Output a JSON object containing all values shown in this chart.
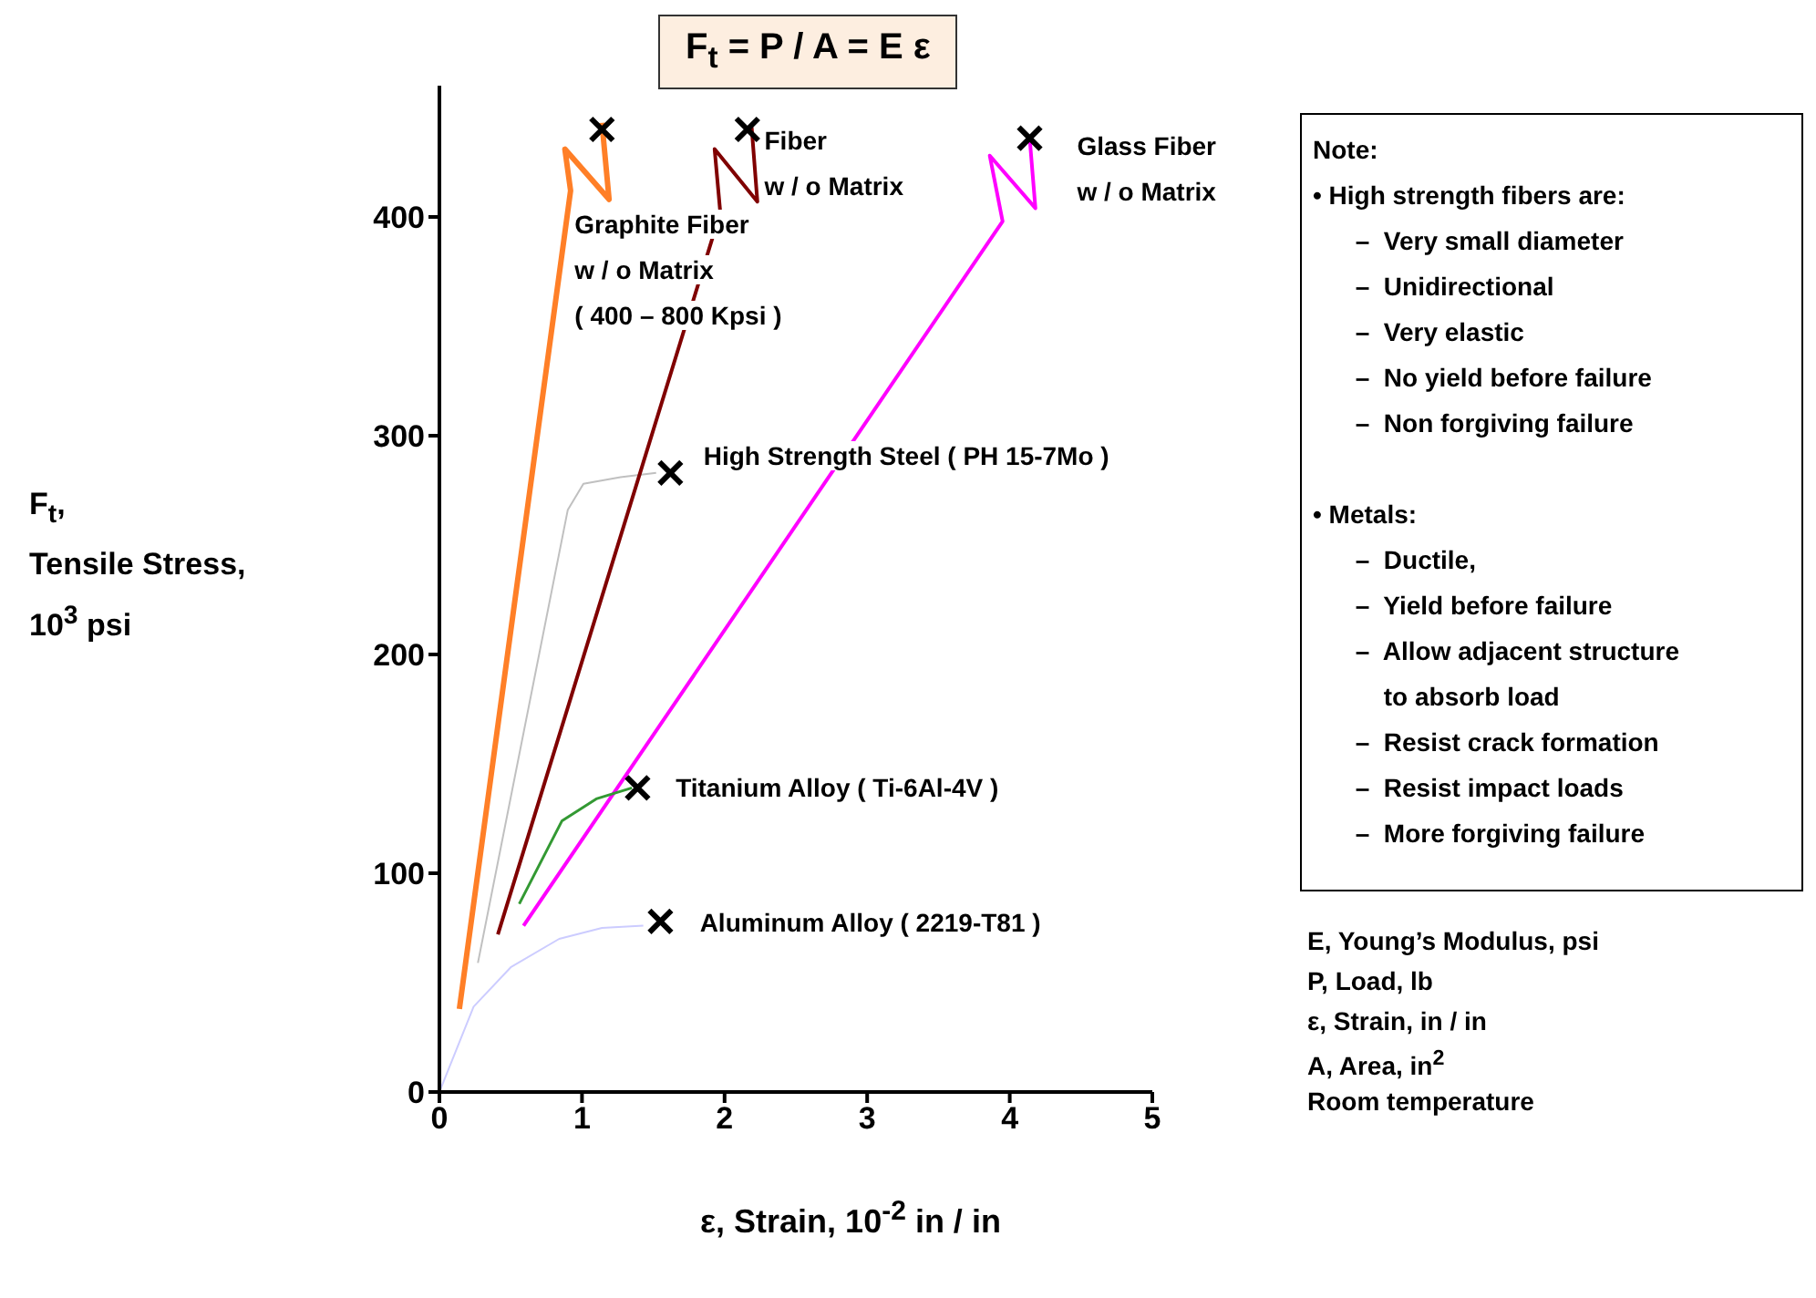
{
  "chart_data": {
    "type": "line",
    "title": "F$_{t}$ = P / A = E ε",
    "xlabel": "ε, Strain, 10$^{-2}$ in / in",
    "ylabel": "F$_{t}$,\nTensile Stress,\n10$^{3}$ psi",
    "xlim": [
      0,
      5
    ],
    "xticks": [
      0,
      1,
      2,
      3,
      4,
      5
    ],
    "ylim": [
      0,
      460
    ],
    "yticks": [
      0,
      100,
      200,
      300,
      400
    ],
    "grid": false,
    "marker": "none",
    "series": [
      {
        "name": "Graphite Fiber\nw / o Matrix\n( 400 – 800 Kpsi )",
        "color": "#ff7f27",
        "x": [
          0.14,
          0.92,
          0.88,
          1.19,
          1.14
        ],
        "values": [
          38,
          412,
          431,
          408,
          443
        ]
      },
      {
        "name": "High Strength Steel ( PH 15-7Mo )",
        "color": "#c0c0c0",
        "x": [
          0.27,
          0.9,
          1.01,
          1.27,
          1.52
        ],
        "values": [
          59,
          266,
          278,
          281,
          283
        ]
      },
      {
        "name": "Fiber\nw / o Matrix",
        "color": "#800000",
        "x": [
          0.41,
          1.97,
          1.93,
          2.23,
          2.19
        ],
        "values": [
          72,
          402,
          431,
          407,
          441
        ]
      },
      {
        "name": "Glass Fiber\nw / o Matrix",
        "color": "#ff00ff",
        "x": [
          0.59,
          3.95,
          3.86,
          4.18,
          4.14
        ],
        "values": [
          76,
          398,
          428,
          404,
          436
        ]
      },
      {
        "name": "Titanium Alloy ( Ti-6Al-4V )",
        "color": "#339933",
        "x": [
          0.56,
          0.86,
          1.1,
          1.35
        ],
        "values": [
          86,
          124,
          134,
          139
        ]
      },
      {
        "name": "Aluminum Alloy ( 2219-T81 )",
        "color": "#ccccff",
        "x": [
          0,
          0.24,
          0.5,
          0.84,
          1.14,
          1.43
        ],
        "values": [
          0,
          39,
          57,
          70,
          75,
          76
        ]
      },
      {
        "type": "scatter",
        "marker": "cross",
        "color": "#000000",
        "x": [
          1.14,
          1.62,
          2.16,
          4.14,
          1.39,
          1.55
        ],
        "values": [
          440,
          283,
          440,
          436,
          139,
          78
        ]
      }
    ],
    "annotations": [
      "Note:\n• High strength fibers are:\n      –  Very small diameter\n      –  Unidirectional\n      –  Very elastic\n      –  No yield before failure\n      –  Non forgiving failure\n\n• Metals:\n      –  Ductile,\n      –  Yield before failure\n      –  Allow adjacent structure\n          to absorb load\n      –  Resist crack formation\n      –  Resist impact loads\n      –  More forgiving failure",
      "E, Young’s Modulus, psi",
      "P, Load, lb",
      "ε, Strain, in / in",
      "A, Area, in$^{2}$",
      "Room temperature"
    ]
  }
}
